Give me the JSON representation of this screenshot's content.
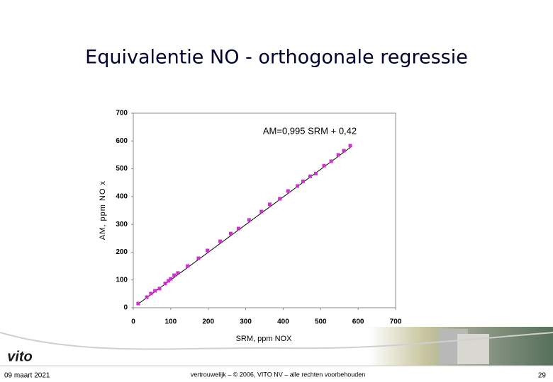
{
  "chart_data": {
    "type": "scatter",
    "title": "Equivalentie NO - orthogonale regressie",
    "annotation": "AM=0,995 SRM + 0,42",
    "x_label": "SRM, ppm NOX",
    "y_label": "AM, ppm NO x",
    "color": "#cc33cc",
    "x": [
      13,
      36,
      47,
      58,
      70,
      85,
      94,
      100,
      109,
      119,
      145,
      174,
      198,
      232,
      260,
      281,
      309,
      342,
      364,
      391,
      413,
      438,
      453,
      472,
      487,
      509,
      528,
      547,
      562,
      579
    ],
    "values": [
      15,
      38,
      51,
      61,
      69,
      87,
      97,
      104,
      117,
      125,
      150,
      178,
      206,
      239,
      267,
      285,
      316,
      346,
      372,
      392,
      420,
      438,
      455,
      473,
      483,
      511,
      527,
      550,
      565,
      583
    ],
    "fit": {
      "slope": 0.995,
      "intercept": 0.42
    },
    "xlim": [
      0,
      700
    ],
    "ylim": [
      0,
      700
    ],
    "xticks": [
      0,
      100,
      200,
      300,
      400,
      500,
      600,
      700
    ],
    "yticks": [
      0,
      100,
      200,
      300,
      400,
      500,
      600,
      700
    ],
    "grid": false
  },
  "footer": {
    "date": "09 maart 2021",
    "notice": "vertrouwelijk – © 2006, VITO NV – alle rechten voorbehouden",
    "page": "29",
    "logo": "vito"
  }
}
